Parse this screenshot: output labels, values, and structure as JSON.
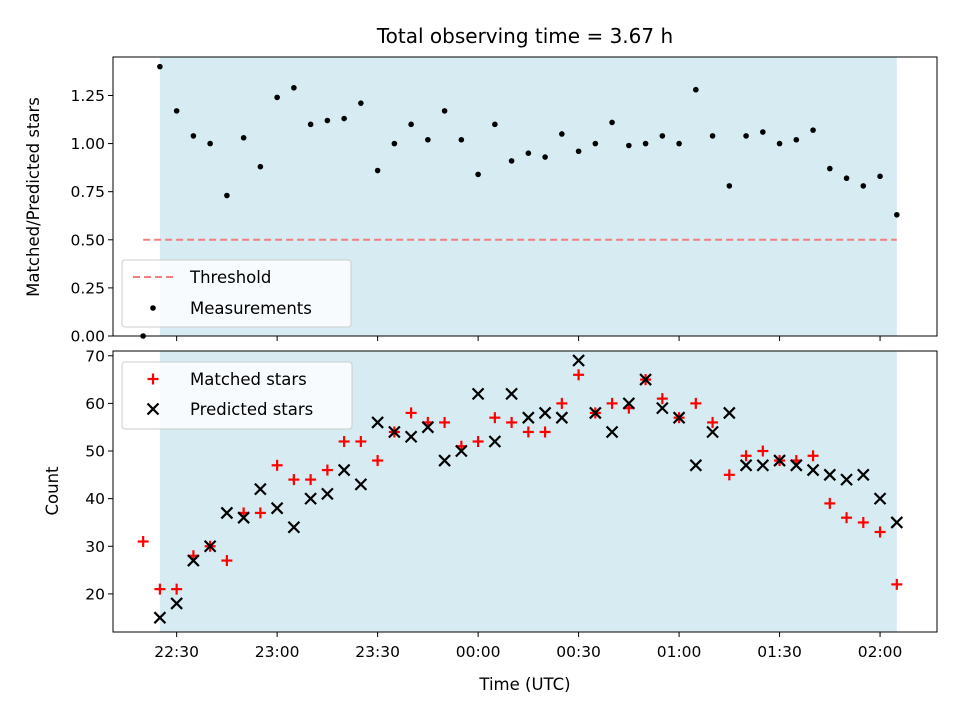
{
  "chart_data": [
    {
      "type": "scatter",
      "title": "Total observing time = 3.67 h",
      "ylabel": "Matched/Predicted stars",
      "xlabel": "",
      "ylim": [
        0,
        1.45
      ],
      "yticks": [
        "0.00",
        "0.25",
        "0.50",
        "0.75",
        "1.00",
        "1.25"
      ],
      "yticks_values": [
        0,
        0.25,
        0.5,
        0.75,
        1.0,
        1.25
      ],
      "legend_position": "lower-left",
      "shaded_span": {
        "start": "22:25",
        "end": "02:05",
        "color": "#add8e6"
      },
      "threshold": {
        "name": "Threshold",
        "value": 0.5,
        "color": "#f08080"
      },
      "series": [
        {
          "name": "Measurements",
          "color": "#000000",
          "marker": "dot",
          "x": [
            "22:20",
            "22:25",
            "22:30",
            "22:35",
            "22:40",
            "22:45",
            "22:50",
            "22:55",
            "23:00",
            "23:05",
            "23:10",
            "23:15",
            "23:20",
            "23:25",
            "23:30",
            "23:35",
            "23:40",
            "23:45",
            "23:50",
            "23:55",
            "00:00",
            "00:05",
            "00:10",
            "00:15",
            "00:20",
            "00:25",
            "00:30",
            "00:35",
            "00:40",
            "00:45",
            "00:50",
            "00:55",
            "01:00",
            "01:05",
            "01:10",
            "01:15",
            "01:20",
            "01:25",
            "01:30",
            "01:35",
            "01:40",
            "01:45",
            "01:50",
            "01:55",
            "02:00",
            "02:05"
          ],
          "y": [
            0.0,
            1.4,
            1.17,
            1.04,
            1.0,
            0.73,
            1.03,
            0.88,
            1.24,
            1.29,
            1.1,
            1.12,
            1.13,
            1.21,
            0.86,
            1.0,
            1.1,
            1.02,
            1.17,
            1.02,
            0.84,
            1.1,
            0.91,
            0.95,
            0.93,
            1.05,
            0.96,
            1.0,
            1.11,
            0.99,
            1.0,
            1.04,
            1.0,
            1.28,
            1.04,
            0.78,
            1.04,
            1.06,
            1.0,
            1.02,
            1.07,
            0.87,
            0.82,
            0.78,
            0.83,
            0.63
          ]
        }
      ]
    },
    {
      "type": "scatter",
      "title": "",
      "ylabel": "Count",
      "xlabel": "Time (UTC)",
      "ylim": [
        12,
        71
      ],
      "yticks": [
        "20",
        "30",
        "40",
        "50",
        "60",
        "70"
      ],
      "yticks_values": [
        20,
        30,
        40,
        50,
        60,
        70
      ],
      "xlim": [
        "22:11",
        "02:17"
      ],
      "xticks": [
        "22:30",
        "23:00",
        "23:30",
        "00:00",
        "00:30",
        "01:00",
        "01:30",
        "02:00"
      ],
      "legend_position": "upper-left",
      "shaded_span": {
        "start": "22:25",
        "end": "02:05",
        "color": "#add8e6"
      },
      "series": [
        {
          "name": "Matched stars",
          "color": "#ff0000",
          "marker": "plus",
          "x": [
            "22:20",
            "22:25",
            "22:30",
            "22:35",
            "22:40",
            "22:45",
            "22:50",
            "22:55",
            "23:00",
            "23:05",
            "23:10",
            "23:15",
            "23:20",
            "23:25",
            "23:30",
            "23:35",
            "23:40",
            "23:45",
            "23:50",
            "23:55",
            "00:00",
            "00:05",
            "00:10",
            "00:15",
            "00:20",
            "00:25",
            "00:30",
            "00:35",
            "00:40",
            "00:45",
            "00:50",
            "00:55",
            "01:00",
            "01:05",
            "01:10",
            "01:15",
            "01:20",
            "01:25",
            "01:30",
            "01:35",
            "01:40",
            "01:45",
            "01:50",
            "01:55",
            "02:00",
            "02:05"
          ],
          "y": [
            31,
            21,
            21,
            28,
            30,
            27,
            37,
            37,
            47,
            44,
            44,
            46,
            52,
            52,
            48,
            54,
            58,
            56,
            56,
            51,
            52,
            57,
            56,
            54,
            54,
            60,
            66,
            58,
            60,
            59,
            65,
            61,
            57,
            60,
            56,
            45,
            49,
            50,
            48,
            48,
            49,
            39,
            36,
            35,
            33,
            22
          ]
        },
        {
          "name": "Predicted stars",
          "color": "#000000",
          "marker": "cross",
          "x": [
            "22:25",
            "22:30",
            "22:35",
            "22:40",
            "22:45",
            "22:50",
            "22:55",
            "23:00",
            "23:05",
            "23:10",
            "23:15",
            "23:20",
            "23:25",
            "23:30",
            "23:35",
            "23:40",
            "23:45",
            "23:50",
            "23:55",
            "00:00",
            "00:05",
            "00:10",
            "00:15",
            "00:20",
            "00:25",
            "00:30",
            "00:35",
            "00:40",
            "00:45",
            "00:50",
            "00:55",
            "01:00",
            "01:05",
            "01:10",
            "01:15",
            "01:20",
            "01:25",
            "01:30",
            "01:35",
            "01:40",
            "01:45",
            "01:50",
            "01:55",
            "02:00",
            "02:05"
          ],
          "y": [
            15,
            18,
            27,
            30,
            37,
            36,
            42,
            38,
            34,
            40,
            41,
            46,
            43,
            56,
            54,
            53,
            55,
            48,
            50,
            62,
            52,
            62,
            57,
            58,
            57,
            69,
            58,
            54,
            60,
            65,
            59,
            57,
            47,
            54,
            58,
            47,
            47,
            48,
            47,
            46,
            45,
            44,
            45,
            40,
            35
          ]
        }
      ]
    }
  ]
}
